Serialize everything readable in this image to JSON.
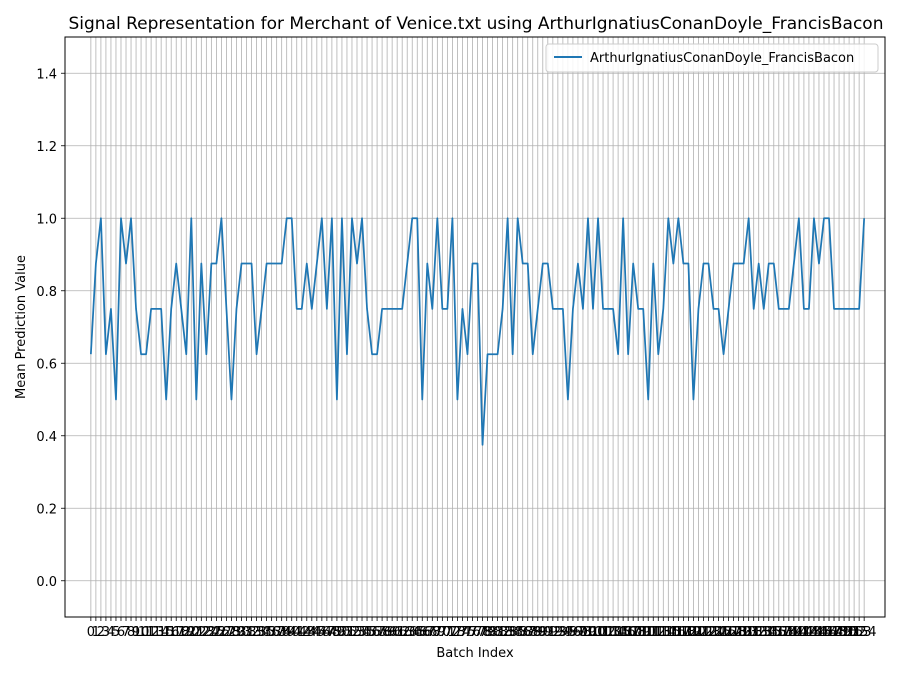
{
  "chart_data": {
    "type": "line",
    "title": "Signal Representation for Merchant of Venice.txt using ArthurIgnatiusConanDoyle_FrancisBacon",
    "xlabel": "Batch Index",
    "ylabel": "Mean Prediction Value",
    "ylim": [
      -0.1,
      1.5
    ],
    "xlim": [
      -5.15,
      158.15
    ],
    "yticks": [
      0.0,
      0.2,
      0.4,
      0.6,
      0.8,
      1.0,
      1.2,
      1.4
    ],
    "ytick_labels": [
      "0.0",
      "0.2",
      "0.4",
      "0.6",
      "0.8",
      "1.0",
      "1.2",
      "1.4"
    ],
    "grid": true,
    "legend_position": "top-right",
    "line_color": "#1f77b4",
    "series": [
      {
        "name": "ArthurIgnatiusConanDoyle_FrancisBacon",
        "values": [
          0.625,
          0.875,
          1.0,
          0.625,
          0.75,
          0.5,
          1.0,
          0.875,
          1.0,
          0.75,
          0.625,
          0.625,
          0.75,
          0.75,
          0.75,
          0.5,
          0.75,
          0.875,
          0.75,
          0.625,
          1.0,
          0.5,
          0.875,
          0.625,
          0.875,
          0.875,
          1.0,
          0.75,
          0.5,
          0.75,
          0.875,
          0.875,
          0.875,
          0.625,
          0.75,
          0.875,
          0.875,
          0.875,
          0.875,
          1.0,
          1.0,
          0.75,
          0.75,
          0.875,
          0.75,
          0.875,
          1.0,
          0.75,
          1.0,
          0.5,
          1.0,
          0.625,
          1.0,
          0.875,
          1.0,
          0.75,
          0.625,
          0.625,
          0.75,
          0.75,
          0.75,
          0.75,
          0.75,
          0.875,
          1.0,
          1.0,
          0.5,
          0.875,
          0.75,
          1.0,
          0.75,
          0.75,
          1.0,
          0.5,
          0.75,
          0.625,
          0.875,
          0.875,
          0.375,
          0.625,
          0.625,
          0.625,
          0.75,
          1.0,
          0.625,
          1.0,
          0.875,
          0.875,
          0.625,
          0.75,
          0.875,
          0.875,
          0.75,
          0.75,
          0.75,
          0.5,
          0.75,
          0.875,
          0.75,
          1.0,
          0.75,
          1.0,
          0.75,
          0.75,
          0.75,
          0.625,
          1.0,
          0.625,
          0.875,
          0.75,
          0.75,
          0.5,
          0.875,
          0.625,
          0.75,
          1.0,
          0.875,
          1.0,
          0.875,
          0.875,
          0.5,
          0.75,
          0.875,
          0.875,
          0.75,
          0.75,
          0.625,
          0.75,
          0.875,
          0.875,
          0.875,
          1.0,
          0.75,
          0.875,
          0.75,
          0.875,
          0.875,
          0.75,
          0.75,
          0.75,
          0.875,
          1.0,
          0.75,
          0.75,
          1.0,
          0.875,
          1.0,
          1.0,
          0.75,
          0.75,
          0.75,
          0.75,
          0.75,
          0.75,
          1.0
        ]
      }
    ]
  }
}
